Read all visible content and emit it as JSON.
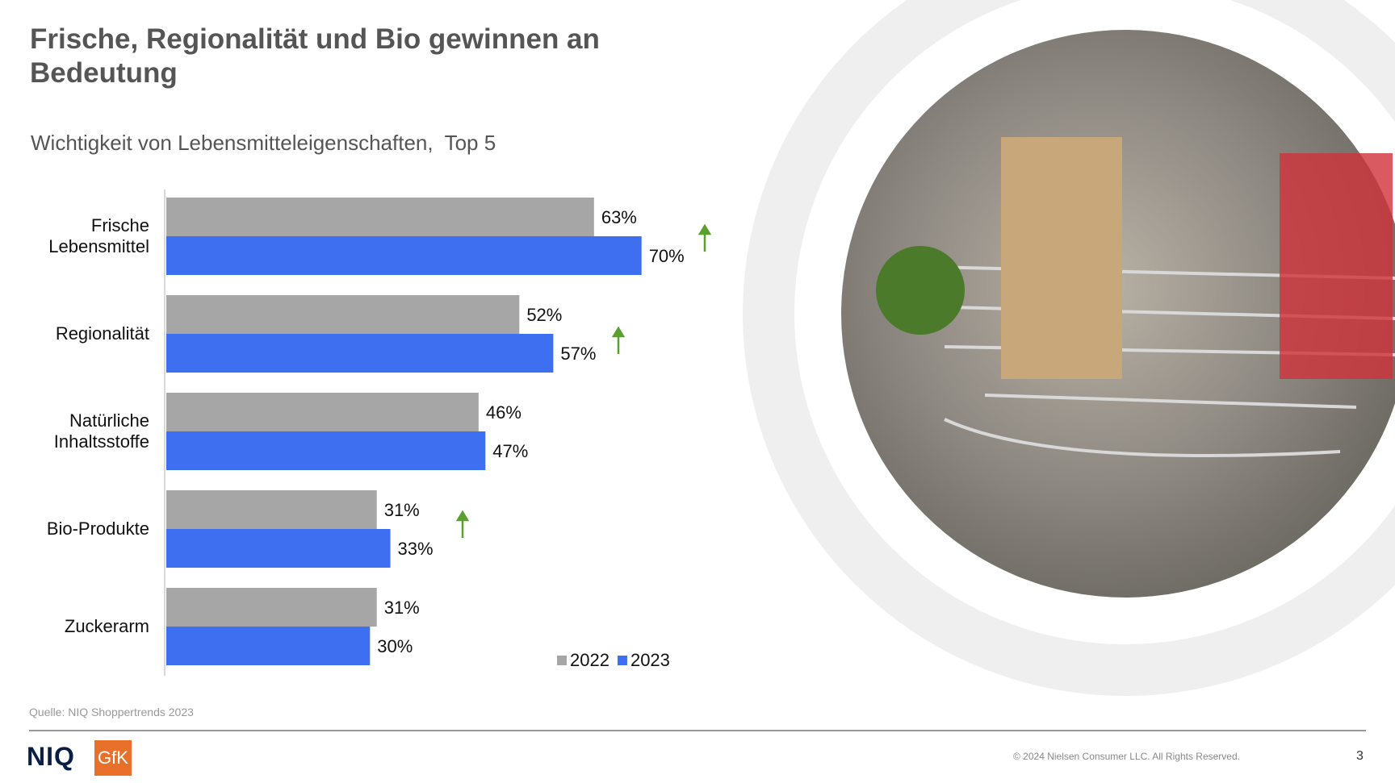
{
  "chart_data": {
    "type": "bar",
    "orientation": "horizontal",
    "title": "Frische, Regionalität und Bio gewinnen an Bedeutung",
    "subtitle": "Wichtigkeit von Lebensmitteleigenschaften,  Top 5",
    "categories": [
      "Frische Lebensmittel",
      "Regionalität",
      "Natürliche Inhaltsstoffe",
      "Bio-Produkte",
      "Zuckerarm"
    ],
    "series": [
      {
        "name": "2022",
        "color": "#a6a6a6",
        "values": [
          63,
          52,
          46,
          31,
          31
        ],
        "value_labels": [
          "63%",
          "52%",
          "46%",
          "31%",
          "31%"
        ]
      },
      {
        "name": "2023",
        "color": "#3d6ff0",
        "values": [
          70,
          57,
          47,
          33,
          30
        ],
        "value_labels": [
          "70%",
          "57%",
          "47%",
          "33%",
          "30%"
        ]
      }
    ]
  },
  "footer": {
    "source": "Quelle: NIQ Shoppertrends 2023",
    "logo_left": "NIQ",
    "logo_right": "GfK",
    "copyright": "© 2024 Nielsen Consumer LLC. All Rights Reserved.",
    "page_number": "3"
  }
}
